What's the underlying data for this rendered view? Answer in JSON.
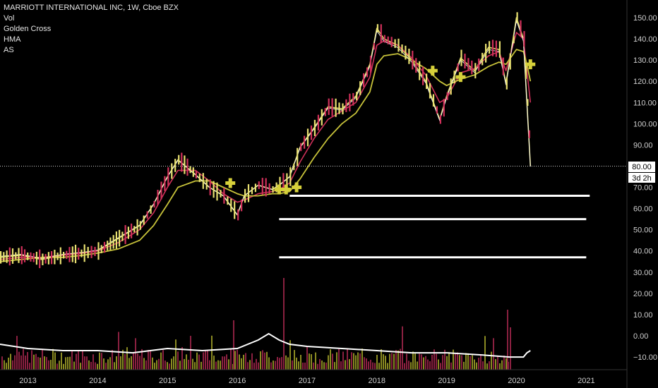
{
  "legend": {
    "symbol": "MARRIOTT INTERNATIONAL INC, 1W, Cboe BZX",
    "studies": [
      "Vol",
      "Golden Cross",
      "HMA",
      "AS"
    ]
  },
  "price_marker": {
    "price_label": "80.00",
    "countdown": "3d 2h"
  },
  "colors": {
    "background": "#000000",
    "candle_up": "#e8e070",
    "candle_down": "#d0305a",
    "hma": "#ffffff",
    "golden_cross_fast": "#d0305a",
    "golden_cross_slow": "#c7c23a",
    "markers": "#d6d03a",
    "volume_up": "#8a8a22",
    "volume_down": "#8a2040",
    "volume_line": "#ffffff",
    "support_lines": "#ffffff"
  },
  "chart_data": {
    "type": "line",
    "title": "MARRIOTT INTERNATIONAL INC, 1W, Cboe BZX",
    "x_ticks": [
      "2013",
      "2014",
      "2015",
      "2016",
      "2017",
      "2018",
      "2019",
      "2020",
      "2021"
    ],
    "y_ticks": [
      "150.00",
      "140.00",
      "130.00",
      "120.00",
      "110.00",
      "100.00",
      "90.00",
      "80.00",
      "70.00",
      "60.00",
      "50.00",
      "40.00",
      "30.00",
      "20.00",
      "10.00",
      "0.00",
      "−10.00"
    ],
    "ylim": [
      -13,
      155
    ],
    "current_price": 80.0,
    "x": [
      2012.6,
      2012.9,
      2013.2,
      2013.5,
      2013.8,
      2014.0,
      2014.3,
      2014.6,
      2014.8,
      2015.0,
      2015.15,
      2015.4,
      2015.6,
      2015.8,
      2016.0,
      2016.1,
      2016.3,
      2016.5,
      2016.6,
      2016.75,
      2016.9,
      2017.1,
      2017.3,
      2017.5,
      2017.7,
      2017.9,
      2018.0,
      2018.1,
      2018.3,
      2018.5,
      2018.7,
      2018.9,
      2019.0,
      2019.2,
      2019.4,
      2019.6,
      2019.75,
      2019.85,
      2020.0,
      2020.1,
      2020.15,
      2020.2
    ],
    "series": [
      {
        "values": [
          37,
          38,
          36,
          38,
          39,
          40,
          46,
          52,
          62,
          75,
          83,
          76,
          70,
          66,
          57,
          66,
          71,
          69,
          71,
          75,
          89,
          98,
          108,
          107,
          113,
          128,
          145,
          140,
          137,
          130,
          120,
          102,
          113,
          131,
          125,
          136,
          135,
          119,
          150,
          140,
          110,
          80
        ]
      },
      {
        "values": [
          36,
          37,
          37,
          38,
          39,
          40,
          44,
          50,
          58,
          70,
          78,
          78,
          73,
          67,
          63,
          64,
          67,
          68,
          69,
          72,
          82,
          93,
          102,
          106,
          110,
          122,
          137,
          139,
          137,
          131,
          123,
          110,
          112,
          124,
          126,
          132,
          134,
          125,
          143,
          140,
          125,
          110
        ]
      },
      {
        "values": [
          35,
          36,
          37,
          37,
          38,
          39,
          41,
          45,
          52,
          62,
          70,
          73,
          73,
          70,
          67,
          66,
          66,
          67,
          67,
          68,
          74,
          84,
          93,
          100,
          105,
          115,
          128,
          132,
          133,
          130,
          126,
          120,
          118,
          121,
          123,
          127,
          129,
          128,
          135,
          134,
          128,
          120
        ]
      }
    ],
    "markers": [
      {
        "x": 2015.9,
        "y": 72
      },
      {
        "x": 2016.6,
        "y": 69
      },
      {
        "x": 2016.7,
        "y": 69
      },
      {
        "x": 2016.85,
        "y": 70
      },
      {
        "x": 2018.8,
        "y": 125
      },
      {
        "x": 2019.2,
        "y": 122
      },
      {
        "x": 2020.2,
        "y": 128
      }
    ],
    "support_lines": [
      {
        "y": 66,
        "x_start": 2016.75,
        "x_end": 2021.05
      },
      {
        "y": 55,
        "x_start": 2016.6,
        "x_end": 2021.0
      },
      {
        "y": 37,
        "x_start": 2016.6,
        "x_end": 2021.0
      }
    ],
    "volume_line": {
      "x": [
        2012.6,
        2013.0,
        2013.5,
        2014.0,
        2014.5,
        2015.0,
        2015.5,
        2016.0,
        2016.3,
        2016.45,
        2016.6,
        2016.75,
        2017.0,
        2017.5,
        2018.0,
        2018.5,
        2019.0,
        2019.5,
        2019.9,
        2020.1,
        2020.15,
        2020.2
      ],
      "values": [
        -4,
        -6,
        -7,
        -7,
        -8,
        -6,
        -7,
        -6,
        -2,
        1,
        -2,
        -4,
        -5,
        -6,
        -7,
        -8,
        -8,
        -9,
        -10,
        -10,
        -8,
        -7
      ]
    }
  }
}
